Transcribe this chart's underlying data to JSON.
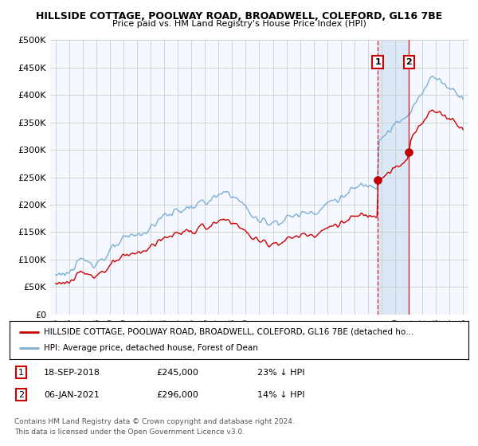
{
  "title1": "HILLSIDE COTTAGE, POOLWAY ROAD, BROADWELL, COLEFORD, GL16 7BE",
  "title2": "Price paid vs. HM Land Registry's House Price Index (HPI)",
  "ylabel_ticks": [
    "£0",
    "£50K",
    "£100K",
    "£150K",
    "£200K",
    "£250K",
    "£300K",
    "£350K",
    "£400K",
    "£450K",
    "£500K"
  ],
  "ytick_vals": [
    0,
    50000,
    100000,
    150000,
    200000,
    250000,
    300000,
    350000,
    400000,
    450000,
    500000
  ],
  "ylim": [
    0,
    500000
  ],
  "hpi_color": "#7bafd4",
  "price_color": "#cc0000",
  "vline1_color": "#cc0000",
  "vline2_color": "#cc0000",
  "span_color": "#d0e4f5",
  "bg_color": "#f5f8ff",
  "grid_color": "#cccccc",
  "sale1_date": "18-SEP-2018",
  "sale1_price": 245000,
  "sale1_label": "23% ↓ HPI",
  "sale1_year": 2018.72,
  "sale2_date": "06-JAN-2021",
  "sale2_price": 296000,
  "sale2_label": "14% ↓ HPI",
  "sale2_year": 2021.02,
  "legend_red": "HILLSIDE COTTAGE, POOLWAY ROAD, BROADWELL, COLEFORD, GL16 7BE (detached ho…",
  "legend_blue": "HPI: Average price, detached house, Forest of Dean",
  "footnote": "Contains HM Land Registry data © Crown copyright and database right 2024.\nThis data is licensed under the Open Government Licence v3.0.",
  "xstart": 1995,
  "xend": 2025
}
